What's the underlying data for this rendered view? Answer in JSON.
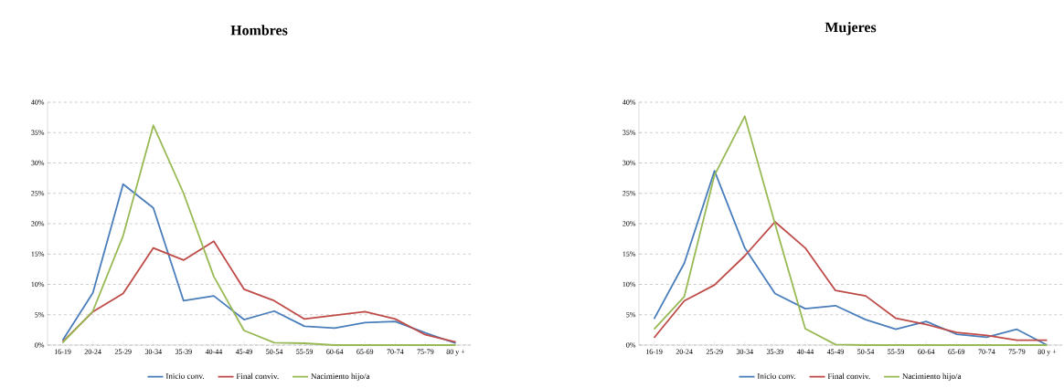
{
  "chart_data": [
    {
      "type": "line",
      "title": "Hombres",
      "categories": [
        "16-19",
        "20-24",
        "25-29",
        "30-34",
        "35-39",
        "40-44",
        "45-49",
        "50-54",
        "55-59",
        "60-64",
        "65-69",
        "70-74",
        "75-79",
        "80 y +"
      ],
      "series": [
        {
          "name": "Inicio conv.",
          "color": "#4a7ebb",
          "values": [
            0.8,
            8.6,
            26.5,
            22.6,
            7.3,
            8.1,
            4.2,
            5.6,
            3.1,
            2.8,
            3.7,
            3.9,
            2.0,
            0.3
          ]
        },
        {
          "name": "Final conviv.",
          "color": "#be4b48",
          "values": [
            0.5,
            5.5,
            8.5,
            16.0,
            14.0,
            17.1,
            9.2,
            7.3,
            4.3,
            4.9,
            5.5,
            4.3,
            1.7,
            0.5
          ]
        },
        {
          "name": "Nacimiento hijo/a",
          "color": "#98b954",
          "values": [
            0.4,
            5.6,
            18.0,
            36.2,
            25.0,
            11.3,
            2.4,
            0.4,
            0.3,
            0.0,
            0.0,
            0.0,
            0.0,
            0.0
          ]
        }
      ],
      "ylim": [
        0,
        40
      ],
      "yticks": [
        {
          "value": 0,
          "label": "0%"
        },
        {
          "value": 5,
          "label": "5%"
        },
        {
          "value": 10,
          "label": "10%"
        },
        {
          "value": 15,
          "label": "15%"
        },
        {
          "value": 20,
          "label": "20%"
        },
        {
          "value": 25,
          "label": "25%"
        },
        {
          "value": 30,
          "label": "30%"
        },
        {
          "value": 35,
          "label": "35%"
        },
        {
          "value": 40,
          "label": "40%"
        }
      ],
      "grid": "y",
      "legend": "bottom",
      "marker": "none",
      "line_style": "solid"
    },
    {
      "type": "line",
      "title": "Mujeres",
      "categories": [
        "16-19",
        "20-24",
        "25-29",
        "30-34",
        "35-39",
        "40-44",
        "45-49",
        "50-54",
        "55-59",
        "60-64",
        "65-69",
        "70-74",
        "75-79",
        "80 y +"
      ],
      "series": [
        {
          "name": "Inicio conv.",
          "color": "#4a7ebb",
          "values": [
            4.3,
            13.5,
            28.7,
            16.0,
            8.5,
            6.0,
            6.5,
            4.2,
            2.6,
            3.9,
            1.8,
            1.3,
            2.6,
            0.0
          ]
        },
        {
          "name": "Final conviv.",
          "color": "#be4b48",
          "values": [
            1.2,
            7.3,
            9.9,
            14.7,
            20.3,
            16.0,
            9.0,
            8.1,
            4.4,
            3.4,
            2.1,
            1.6,
            0.8,
            0.8
          ]
        },
        {
          "name": "Nacimiento hijo/a",
          "color": "#98b954",
          "values": [
            2.6,
            8.0,
            28.0,
            37.7,
            20.0,
            2.7,
            0.1,
            0.0,
            0.0,
            0.0,
            0.0,
            0.0,
            0.0,
            0.0
          ]
        }
      ],
      "ylim": [
        0,
        40
      ],
      "yticks": [
        {
          "value": 0,
          "label": "0%"
        },
        {
          "value": 5,
          "label": "5%"
        },
        {
          "value": 10,
          "label": "10%"
        },
        {
          "value": 15,
          "label": "15%"
        },
        {
          "value": 20,
          "label": "20%"
        },
        {
          "value": 25,
          "label": "25%"
        },
        {
          "value": 30,
          "label": "30%"
        },
        {
          "value": 35,
          "label": "35%"
        },
        {
          "value": 40,
          "label": "40%"
        }
      ],
      "grid": "y",
      "legend": "bottom",
      "marker": "none",
      "line_style": "solid"
    }
  ]
}
